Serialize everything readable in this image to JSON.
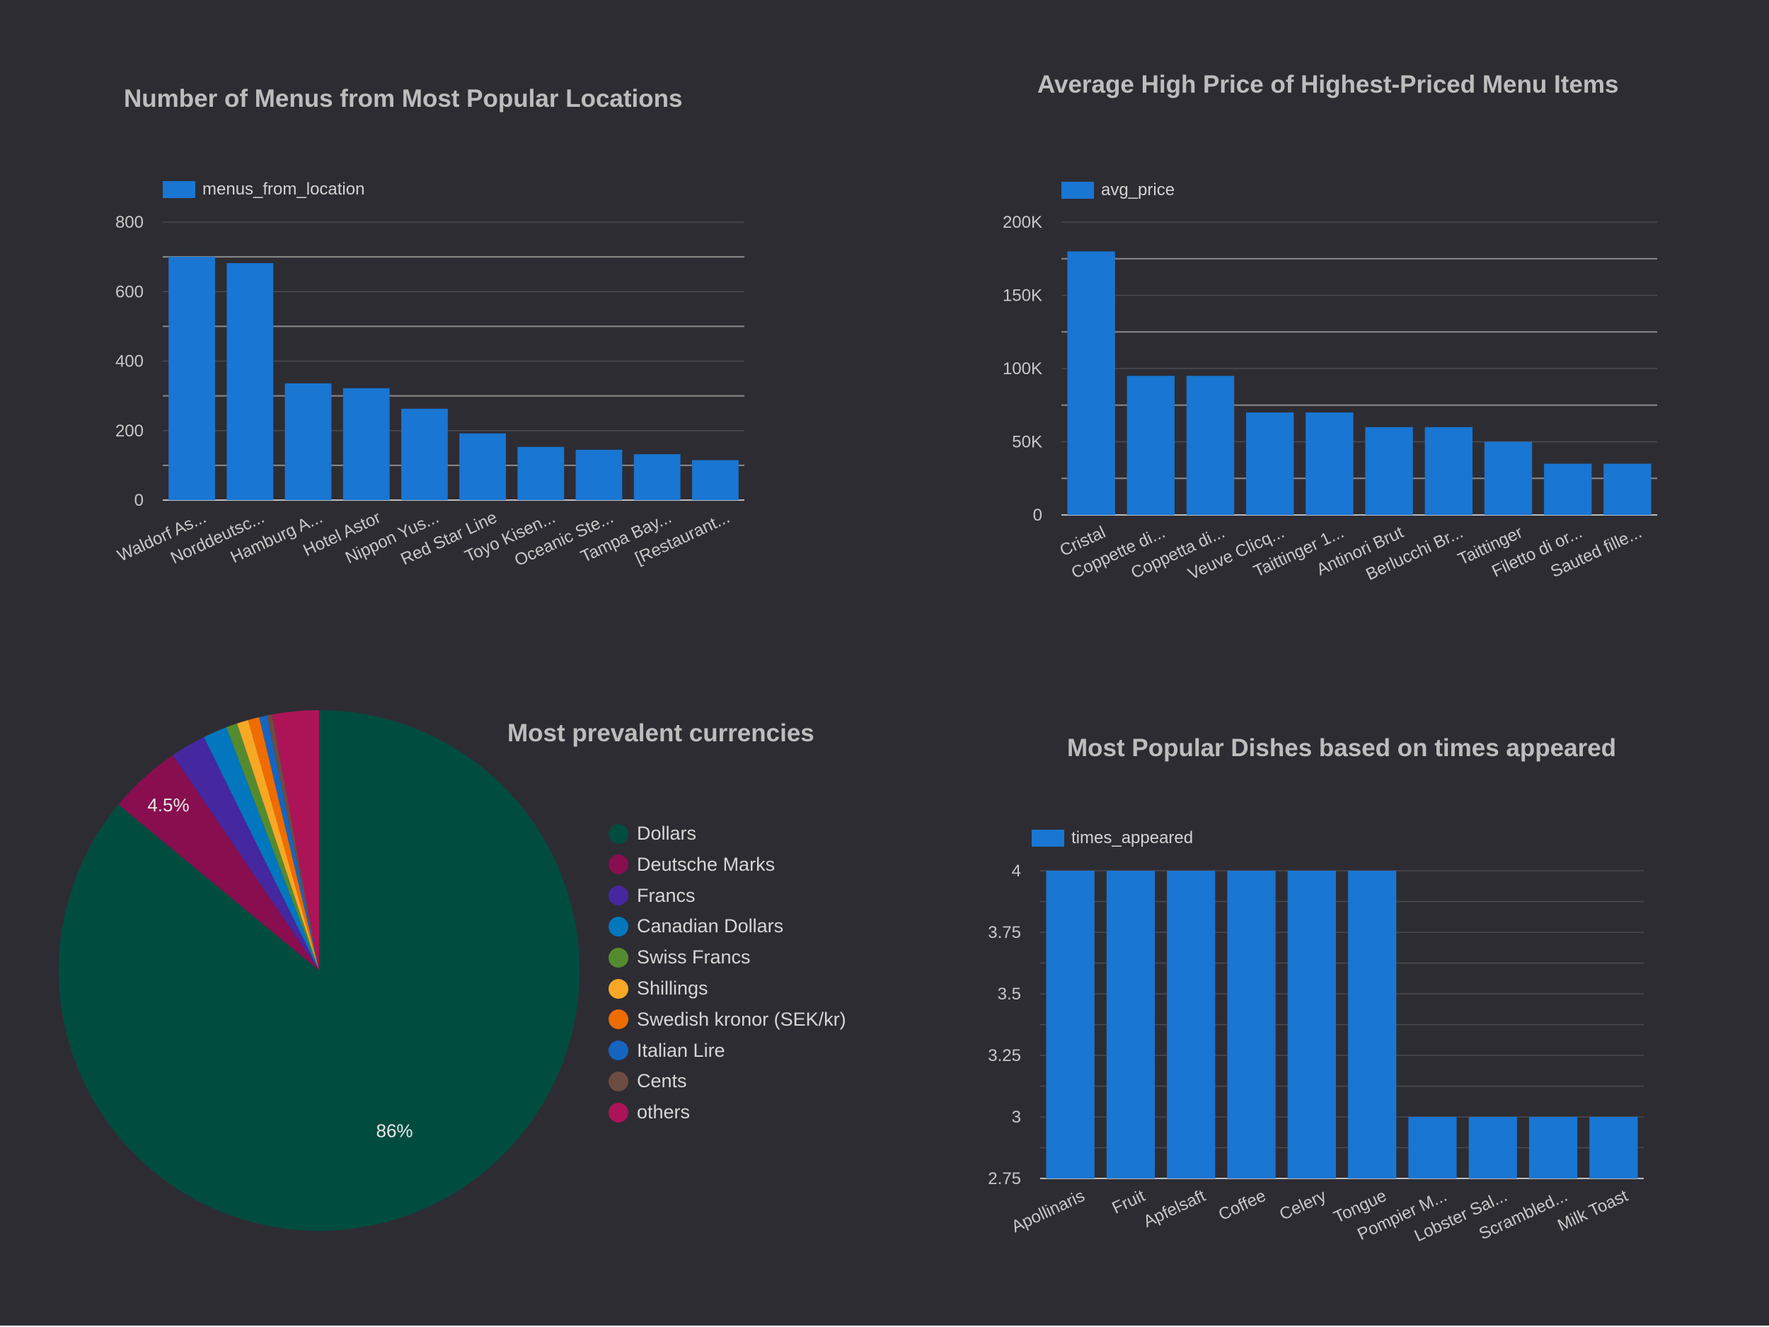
{
  "colors": {
    "bar": "#1976d2",
    "grid": "#4a4a4f",
    "gridMajor": "#8a8a8a",
    "tick": "#c8c8c8",
    "bg": "#2e2c33"
  },
  "chart_data": [
    {
      "id": "menus",
      "type": "bar",
      "title": "Number of Menus from Most Popular Locations",
      "legend": "menus_from_location",
      "categories": [
        "Waldorf As...",
        "Norddeutsc...",
        "Hamburg A...",
        "Hotel Astor",
        "Nippon Yus...",
        "Red Star Line",
        "Toyo Kisen...",
        "Oceanic Ste...",
        "Tampa Bay...",
        "[Restaurant..."
      ],
      "values": [
        700,
        682,
        336,
        322,
        263,
        192,
        153,
        145,
        132,
        115
      ],
      "ylim": [
        0,
        800
      ],
      "yticks": [
        0,
        200,
        400,
        600,
        800
      ],
      "ytick_labels": [
        "0",
        "200",
        "400",
        "600",
        "800"
      ],
      "xlabel": "",
      "ylabel": ""
    },
    {
      "id": "prices",
      "type": "bar",
      "title": "Average High Price of Highest-Priced Menu Items",
      "legend": "avg_price",
      "categories": [
        "Cristal",
        "Coppette di...",
        "Coppetta di...",
        "Veuve Clicq...",
        "Taittinger 1...",
        "Antinori Brut",
        "Berlucchi Br...",
        "Taittinger",
        "Filetto di or...",
        "Sauted fille..."
      ],
      "values": [
        180000,
        95000,
        95000,
        70000,
        70000,
        60000,
        60000,
        50000,
        35000,
        35000
      ],
      "ylim": [
        0,
        200000
      ],
      "yticks": [
        0,
        50000,
        100000,
        150000,
        200000
      ],
      "ytick_labels": [
        "0",
        "50K",
        "100K",
        "150K",
        "200K"
      ],
      "xlabel": "",
      "ylabel": ""
    },
    {
      "id": "currencies",
      "type": "pie",
      "title": "Most prevalent currencies",
      "legend_position": "right",
      "slices": [
        {
          "name": "Dollars",
          "value": 86,
          "color": "#004d40",
          "label": "86%"
        },
        {
          "name": "Deutsche Marks",
          "value": 4.5,
          "color": "#880e4f",
          "label": "4.5%"
        },
        {
          "name": "Francs",
          "value": 2.2,
          "color": "#4527a0",
          "label": ""
        },
        {
          "name": "Canadian Dollars",
          "value": 1.5,
          "color": "#0277bd",
          "label": ""
        },
        {
          "name": "Swiss Francs",
          "value": 0.7,
          "color": "#558b2f",
          "label": ""
        },
        {
          "name": "Shillings",
          "value": 0.7,
          "color": "#f9a825",
          "label": ""
        },
        {
          "name": "Swedish kronor (SEK/kr)",
          "value": 0.7,
          "color": "#ef6c00",
          "label": ""
        },
        {
          "name": "Italian Lire",
          "value": 0.5,
          "color": "#1565c0",
          "label": ""
        },
        {
          "name": "Cents",
          "value": 0.3,
          "color": "#6d4c41",
          "label": ""
        },
        {
          "name": "others",
          "value": 2.9,
          "color": "#ad1457",
          "label": ""
        }
      ]
    },
    {
      "id": "dishes",
      "type": "bar",
      "title": "Most Popular Dishes based on times appeared",
      "legend": "times_appeared",
      "categories": [
        "Apollinaris",
        "Fruit",
        "Apfelsaft",
        "Coffee",
        "Celery",
        "Tongue",
        "Pompier M...",
        "Lobster Sal...",
        "Scrambled...",
        "Milk Toast"
      ],
      "values": [
        4,
        4,
        4,
        4,
        4,
        4,
        3,
        3,
        3,
        3
      ],
      "ylim": [
        2.75,
        4
      ],
      "yticks": [
        2.75,
        3,
        3.25,
        3.5,
        3.75,
        4
      ],
      "ytick_labels": [
        "2.75",
        "3",
        "3.25",
        "3.5",
        "3.75",
        "4"
      ],
      "xlabel": "",
      "ylabel": ""
    }
  ]
}
